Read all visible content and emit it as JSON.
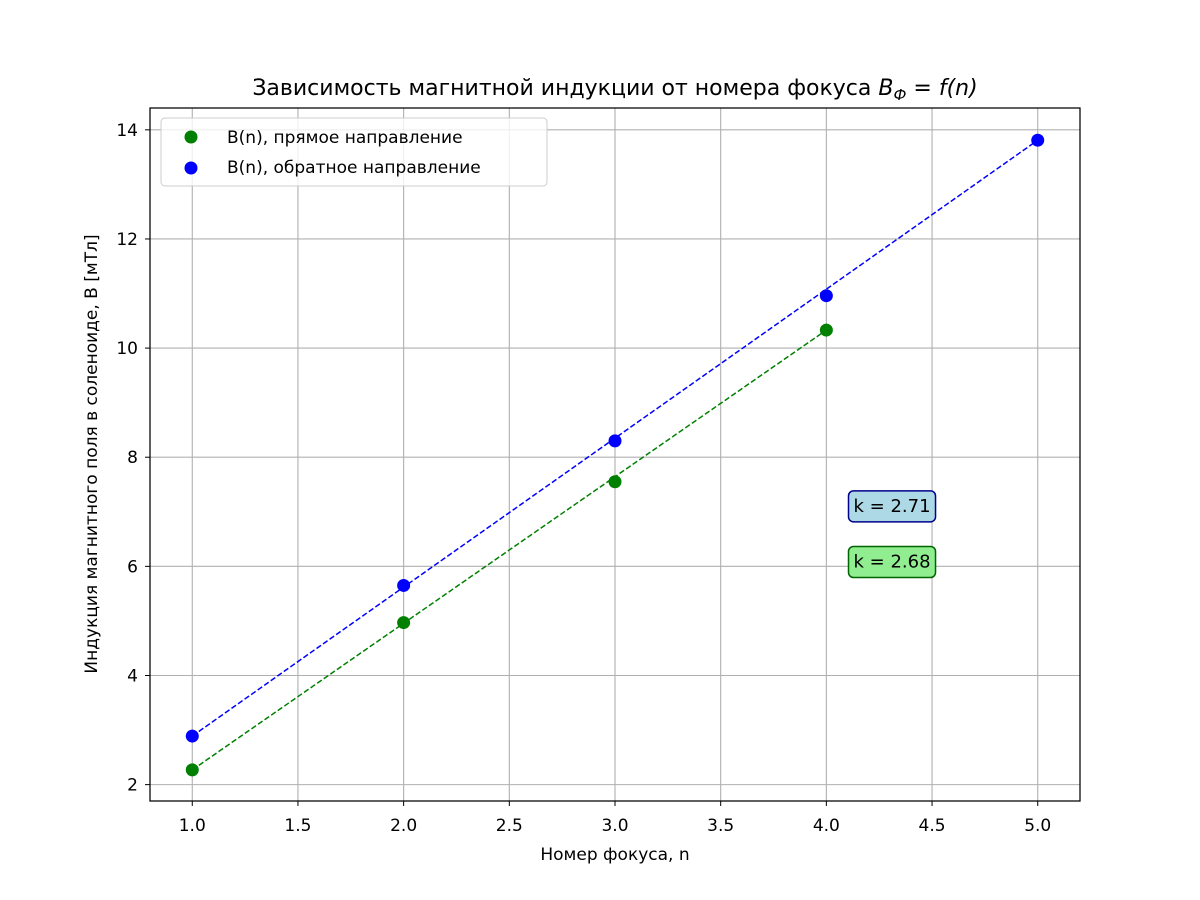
{
  "chart_data": {
    "type": "scatter",
    "title_main": "Зависимость магнитной индукции от номера фокуса ",
    "title_math": {
      "symbol": "B",
      "subscript": "Ф",
      "equals": " = ",
      "func": "f",
      "arg": "(n)"
    },
    "xlabel": "Номер фокуса, n",
    "ylabel": "Индукция магнитного поля в соленоиде, B [мТл]",
    "xlim": [
      0.8,
      5.2
    ],
    "ylim": [
      1.7,
      14.4
    ],
    "x_ticks": [
      1.0,
      1.5,
      2.0,
      2.5,
      3.0,
      3.5,
      4.0,
      4.5,
      5.0
    ],
    "x_tick_labels": [
      "1.0",
      "1.5",
      "2.0",
      "2.5",
      "3.0",
      "3.5",
      "4.0",
      "4.5",
      "5.0"
    ],
    "y_ticks": [
      2,
      4,
      6,
      8,
      10,
      12,
      14
    ],
    "y_tick_labels": [
      "2",
      "4",
      "6",
      "8",
      "10",
      "12",
      "14"
    ],
    "grid": true,
    "legend_position": "top-left",
    "series": [
      {
        "name": "B(n), прямое направление",
        "color": "#008000",
        "x": [
          1,
          2,
          3,
          4
        ],
        "y": [
          2.27,
          4.97,
          7.55,
          10.33
        ],
        "fit_line": {
          "x": [
            1,
            4
          ],
          "y": [
            2.27,
            10.33
          ],
          "style": "dashed"
        }
      },
      {
        "name": "B(n), обратное направление",
        "color": "#0000ff",
        "x": [
          1,
          2,
          3,
          4,
          5
        ],
        "y": [
          2.89,
          5.65,
          8.3,
          10.96,
          13.81
        ],
        "fit_line": {
          "x": [
            1,
            5
          ],
          "y": [
            2.89,
            13.81
          ],
          "style": "dashed"
        }
      }
    ],
    "annotations": [
      {
        "text": "k = 2.71",
        "x": 4.1,
        "y": 7.1,
        "fill": "#add8e6",
        "border": "#00008b"
      },
      {
        "text": "k = 2.68",
        "x": 4.1,
        "y": 6.08,
        "fill": "#90ee90",
        "border": "#006400"
      }
    ]
  }
}
